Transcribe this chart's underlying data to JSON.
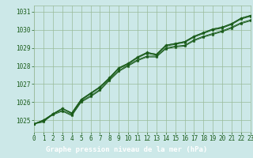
{
  "xlabel": "Graphe pression niveau de la mer (hPa)",
  "bg_color": "#cce8e8",
  "plot_bg_color": "#cce8e8",
  "label_bg_color": "#2d6e2d",
  "grid_color": "#99bb99",
  "line_color": "#1a5c1a",
  "x_values": [
    0,
    1,
    2,
    3,
    4,
    5,
    6,
    7,
    8,
    9,
    10,
    11,
    12,
    13,
    14,
    15,
    16,
    17,
    18,
    19,
    20,
    21,
    22,
    23
  ],
  "series": [
    [
      1024.8,
      1024.9,
      1025.35,
      1025.55,
      1025.3,
      1026.05,
      1026.35,
      1026.7,
      1027.25,
      1027.75,
      1028.05,
      1028.35,
      1028.55,
      1028.55,
      1029.0,
      1029.1,
      1029.15,
      1029.45,
      1029.65,
      1029.8,
      1029.95,
      1030.15,
      1030.4,
      1030.55
    ],
    [
      1024.8,
      1024.95,
      1025.3,
      1025.5,
      1025.25,
      1026.0,
      1026.3,
      1026.65,
      1027.2,
      1027.7,
      1028.0,
      1028.3,
      1028.5,
      1028.5,
      1028.95,
      1029.05,
      1029.1,
      1029.4,
      1029.6,
      1029.75,
      1029.9,
      1030.1,
      1030.35,
      1030.5
    ],
    [
      1024.8,
      1025.0,
      1025.35,
      1025.65,
      1025.4,
      1026.15,
      1026.5,
      1026.85,
      1027.35,
      1027.9,
      1028.15,
      1028.5,
      1028.75,
      1028.65,
      1029.15,
      1029.25,
      1029.35,
      1029.65,
      1029.85,
      1030.05,
      1030.15,
      1030.35,
      1030.65,
      1030.8
    ],
    [
      1024.8,
      1025.0,
      1025.35,
      1025.65,
      1025.4,
      1026.15,
      1026.5,
      1026.85,
      1027.35,
      1027.9,
      1028.15,
      1028.5,
      1028.75,
      1028.65,
      1029.15,
      1029.25,
      1029.35,
      1029.65,
      1029.85,
      1030.05,
      1030.15,
      1030.35,
      1030.65,
      1030.8
    ],
    [
      1024.8,
      1025.0,
      1025.35,
      1025.65,
      1025.35,
      1026.1,
      1026.45,
      1026.8,
      1027.3,
      1027.85,
      1028.1,
      1028.45,
      1028.7,
      1028.6,
      1029.1,
      1029.2,
      1029.3,
      1029.6,
      1029.8,
      1030.0,
      1030.1,
      1030.3,
      1030.6,
      1030.75
    ]
  ],
  "ylim": [
    1024.35,
    1031.35
  ],
  "yticks": [
    1025,
    1026,
    1027,
    1028,
    1029,
    1030,
    1031
  ],
  "xlim": [
    0,
    23
  ],
  "xticks": [
    0,
    1,
    2,
    3,
    4,
    5,
    6,
    7,
    8,
    9,
    10,
    11,
    12,
    13,
    14,
    15,
    16,
    17,
    18,
    19,
    20,
    21,
    22,
    23
  ],
  "font_color": "#1a5c1a",
  "label_font_color": "#ffffff",
  "tick_fontsize": 5.5,
  "label_fontsize": 6.5
}
